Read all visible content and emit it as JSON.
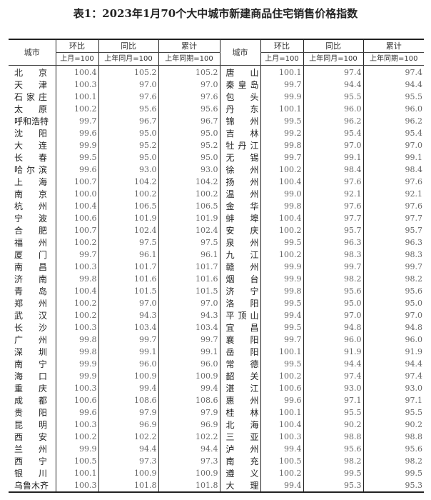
{
  "title": "表1：2023年1月70个大中城市新建商品住宅销售价格指数",
  "header": {
    "city": "城市",
    "mom": "环比",
    "yoy": "同比",
    "cum": "累计",
    "mom_base": "上月=100",
    "yoy_base": "上年同月=100",
    "cum_base": "上年同期=100"
  },
  "left": [
    [
      "北　京",
      "100.4",
      "105.2",
      "105.2"
    ],
    [
      "天　津",
      "100.3",
      "97.0",
      "97.0"
    ],
    [
      "石家庄",
      "100.1",
      "97.6",
      "97.6"
    ],
    [
      "太　原",
      "100.2",
      "95.6",
      "95.6"
    ],
    [
      "呼和浩特",
      "99.7",
      "96.7",
      "96.7"
    ],
    [
      "沈　阳",
      "99.6",
      "95.0",
      "95.0"
    ],
    [
      "大　连",
      "99.9",
      "95.2",
      "95.2"
    ],
    [
      "长　春",
      "99.5",
      "95.0",
      "95.0"
    ],
    [
      "哈尔滨",
      "99.6",
      "93.0",
      "93.0"
    ],
    [
      "上　海",
      "100.7",
      "104.2",
      "104.2"
    ],
    [
      "南　京",
      "100.0",
      "100.2",
      "100.2"
    ],
    [
      "杭　州",
      "100.4",
      "106.5",
      "106.5"
    ],
    [
      "宁　波",
      "100.6",
      "101.9",
      "101.9"
    ],
    [
      "合　肥",
      "100.7",
      "102.4",
      "102.4"
    ],
    [
      "福　州",
      "100.2",
      "97.5",
      "97.5"
    ],
    [
      "厦　门",
      "99.7",
      "96.1",
      "96.1"
    ],
    [
      "南　昌",
      "100.3",
      "101.7",
      "101.7"
    ],
    [
      "济　南",
      "99.8",
      "101.6",
      "101.6"
    ],
    [
      "青　岛",
      "100.4",
      "101.5",
      "101.5"
    ],
    [
      "郑　州",
      "100.2",
      "97.0",
      "97.0"
    ],
    [
      "武　汉",
      "100.2",
      "94.3",
      "94.3"
    ],
    [
      "长　沙",
      "100.3",
      "103.4",
      "103.4"
    ],
    [
      "广　州",
      "99.8",
      "99.7",
      "99.7"
    ],
    [
      "深　圳",
      "99.8",
      "99.1",
      "99.1"
    ],
    [
      "南　宁",
      "99.9",
      "96.0",
      "96.0"
    ],
    [
      "海　口",
      "99.9",
      "100.9",
      "100.9"
    ],
    [
      "重　庆",
      "100.3",
      "99.4",
      "99.4"
    ],
    [
      "成　都",
      "100.6",
      "108.6",
      "108.6"
    ],
    [
      "贵　阳",
      "99.6",
      "97.9",
      "97.9"
    ],
    [
      "昆　明",
      "100.3",
      "96.9",
      "96.9"
    ],
    [
      "西　安",
      "100.2",
      "102.2",
      "102.2"
    ],
    [
      "兰　州",
      "99.9",
      "94.4",
      "94.4"
    ],
    [
      "西　宁",
      "100.5",
      "97.3",
      "97.3"
    ],
    [
      "银　川",
      "100.1",
      "100.9",
      "100.9"
    ],
    [
      "乌鲁木齐",
      "100.3",
      "101.8",
      "101.8"
    ]
  ],
  "right": [
    [
      "唐　山",
      "100.1",
      "97.4",
      "97.4"
    ],
    [
      "秦皇岛",
      "99.7",
      "94.4",
      "94.4"
    ],
    [
      "包　头",
      "99.9",
      "95.5",
      "95.5"
    ],
    [
      "丹　东",
      "100.1",
      "96.0",
      "96.0"
    ],
    [
      "锦　州",
      "99.5",
      "96.2",
      "96.2"
    ],
    [
      "吉　林",
      "99.2",
      "95.4",
      "95.4"
    ],
    [
      "牡丹江",
      "99.8",
      "97.0",
      "97.0"
    ],
    [
      "无　锡",
      "99.7",
      "99.1",
      "99.1"
    ],
    [
      "徐　州",
      "100.2",
      "98.4",
      "98.4"
    ],
    [
      "扬　州",
      "100.4",
      "97.6",
      "97.6"
    ],
    [
      "温　州",
      "99.0",
      "92.1",
      "92.1"
    ],
    [
      "金　华",
      "99.8",
      "97.6",
      "97.6"
    ],
    [
      "蚌　埠",
      "100.4",
      "97.7",
      "97.7"
    ],
    [
      "安　庆",
      "100.2",
      "95.7",
      "95.7"
    ],
    [
      "泉　州",
      "99.5",
      "96.3",
      "96.3"
    ],
    [
      "九　江",
      "100.2",
      "98.3",
      "98.3"
    ],
    [
      "赣　州",
      "99.9",
      "99.7",
      "99.7"
    ],
    [
      "烟　台",
      "99.9",
      "98.2",
      "98.2"
    ],
    [
      "济　宁",
      "99.8",
      "95.6",
      "95.6"
    ],
    [
      "洛　阳",
      "99.5",
      "95.0",
      "95.0"
    ],
    [
      "平顶山",
      "99.4",
      "97.0",
      "97.0"
    ],
    [
      "宜　昌",
      "99.5",
      "94.8",
      "94.8"
    ],
    [
      "襄　阳",
      "99.7",
      "96.0",
      "96.0"
    ],
    [
      "岳　阳",
      "100.1",
      "91.9",
      "91.9"
    ],
    [
      "常　德",
      "99.5",
      "94.4",
      "94.4"
    ],
    [
      "韶　关",
      "100.2",
      "97.4",
      "97.4"
    ],
    [
      "湛　江",
      "100.6",
      "93.0",
      "93.0"
    ],
    [
      "惠　州",
      "99.6",
      "97.1",
      "97.1"
    ],
    [
      "桂　林",
      "100.1",
      "95.5",
      "95.5"
    ],
    [
      "北　海",
      "100.4",
      "90.2",
      "90.2"
    ],
    [
      "三　亚",
      "100.3",
      "98.8",
      "98.8"
    ],
    [
      "泸　州",
      "99.4",
      "95.6",
      "95.6"
    ],
    [
      "南　充",
      "100.5",
      "98.2",
      "98.2"
    ],
    [
      "遵　义",
      "100.2",
      "99.5",
      "99.5"
    ],
    [
      "大　理",
      "99.4",
      "95.3",
      "95.3"
    ]
  ]
}
